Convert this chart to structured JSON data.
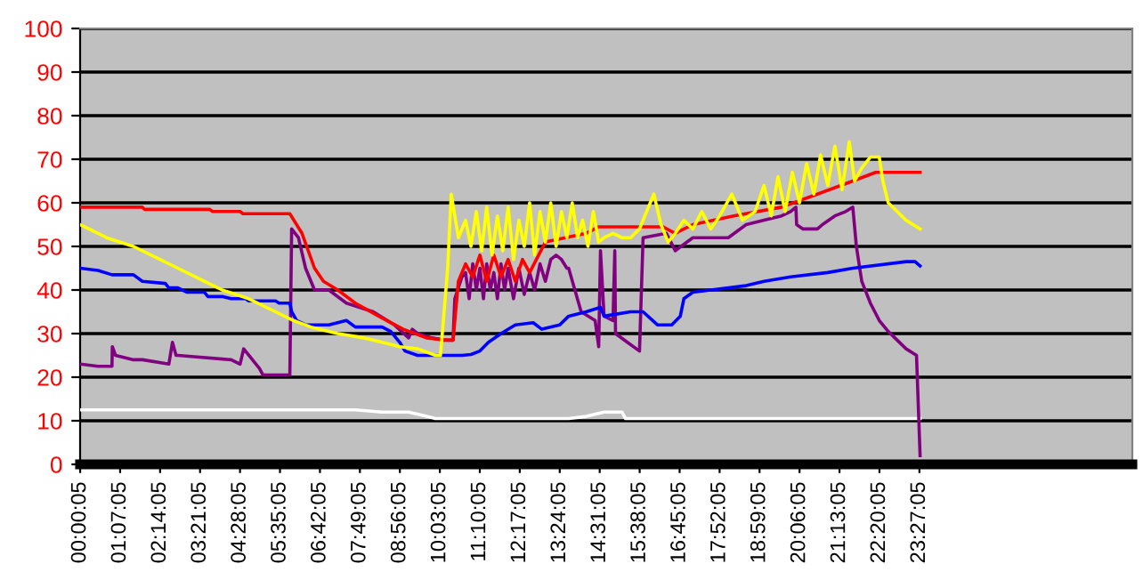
{
  "chart_data": {
    "type": "line",
    "grid": "y",
    "marker": "none",
    "line_style": "solid",
    "legend": false,
    "xlim": [
      0,
      29.4
    ],
    "ylim": [
      0,
      100
    ],
    "yticks": [
      0,
      10,
      20,
      30,
      40,
      50,
      60,
      70,
      80,
      90,
      100
    ],
    "xticks": [
      {
        "value": 0.0014,
        "label": "00:00:05"
      },
      {
        "value": 1.1181,
        "label": "01:07:05"
      },
      {
        "value": 2.2347,
        "label": "02:14:05"
      },
      {
        "value": 3.3514,
        "label": "03:21:05"
      },
      {
        "value": 4.4681,
        "label": "04:28:05"
      },
      {
        "value": 5.5847,
        "label": "05:35:05"
      },
      {
        "value": 6.7014,
        "label": "06:42:05"
      },
      {
        "value": 7.8181,
        "label": "07:49:05"
      },
      {
        "value": 8.9347,
        "label": "08:56:05"
      },
      {
        "value": 10.0514,
        "label": "10:03:05"
      },
      {
        "value": 11.1681,
        "label": "11:10:05"
      },
      {
        "value": 12.2847,
        "label": "12:17:05"
      },
      {
        "value": 13.4014,
        "label": "13:24:05"
      },
      {
        "value": 14.5181,
        "label": "14:31:05"
      },
      {
        "value": 15.6347,
        "label": "15:38:05"
      },
      {
        "value": 16.7514,
        "label": "16:45:05"
      },
      {
        "value": 17.8681,
        "label": "17:52:05"
      },
      {
        "value": 18.9847,
        "label": "18:59:05"
      },
      {
        "value": 20.1014,
        "label": "20:06:05"
      },
      {
        "value": 21.2181,
        "label": "21:13:05"
      },
      {
        "value": 22.3347,
        "label": "22:20:05"
      },
      {
        "value": 23.4514,
        "label": "23:27:05"
      }
    ],
    "series": [
      {
        "color": "#ffffff",
        "x": [
          0,
          7.69,
          8.44,
          9.18,
          9.68,
          9.93,
          13.65,
          14.14,
          14.64,
          15.14,
          15.24,
          23.47
        ],
        "values": [
          12.5,
          12.5,
          12,
          12,
          11,
          10.5,
          10.5,
          11,
          12,
          12,
          10.5,
          10.5
        ]
      },
      {
        "color": "#800080",
        "x": [
          0,
          0.5,
          0.89,
          0.9,
          0.99,
          1.49,
          1.74,
          2.48,
          2.58,
          2.68,
          2.73,
          4.22,
          4.47,
          4.57,
          5.01,
          5.11,
          5.46,
          5.86,
          5.91,
          6.1,
          6.3,
          6.55,
          6.95,
          7.44,
          8.19,
          8.78,
          9.18,
          9.28,
          9.43,
          9.83,
          10.17,
          10.42,
          10.47,
          10.67,
          10.77,
          10.87,
          10.97,
          11.07,
          11.17,
          11.27,
          11.36,
          11.46,
          11.56,
          11.66,
          11.76,
          11.86,
          11.96,
          12.11,
          12.26,
          12.41,
          12.56,
          12.7,
          12.85,
          13.0,
          13.15,
          13.3,
          13.45,
          13.6,
          13.65,
          14.0,
          14.39,
          14.49,
          14.54,
          14.64,
          14.89,
          14.94,
          14.96,
          15.29,
          15.63,
          15.73,
          16.38,
          16.63,
          17.12,
          18.11,
          18.61,
          19.11,
          19.6,
          19.85,
          20.0,
          20.02,
          20.2,
          20.6,
          20.74,
          21.09,
          21.39,
          21.59,
          21.69,
          21.84,
          22.08,
          22.33,
          22.58,
          22.83,
          23.08,
          23.37,
          23.47
        ],
        "values": [
          23,
          22.5,
          22.5,
          27,
          25,
          24,
          24,
          23,
          28,
          25,
          25,
          24,
          23,
          26.5,
          22,
          20.5,
          20.5,
          20.5,
          54,
          52,
          45,
          40,
          40,
          37,
          35,
          32,
          29,
          31,
          30,
          29,
          28.5,
          28.5,
          38,
          43,
          44,
          38,
          46,
          40,
          45,
          38,
          46,
          40,
          44,
          38,
          46,
          40,
          45,
          38,
          45,
          39,
          44,
          40,
          46,
          42,
          47,
          48,
          47,
          45,
          45,
          35,
          33,
          27,
          49,
          34,
          33,
          49,
          30,
          28,
          26,
          52,
          53,
          49,
          52,
          52,
          55,
          56,
          57,
          58,
          59,
          55,
          54,
          54,
          55,
          57,
          58,
          59,
          50,
          42,
          37,
          33,
          30.5,
          28.5,
          26.5,
          25,
          2
        ]
      },
      {
        "color": "#ff0000",
        "x": [
          0,
          1.74,
          1.8,
          3.62,
          3.7,
          4.47,
          4.55,
          5.86,
          6.2,
          6.55,
          6.8,
          7.2,
          7.69,
          8.34,
          9.03,
          9.68,
          10.27,
          10.42,
          10.57,
          10.77,
          10.97,
          11.17,
          11.36,
          11.56,
          11.76,
          11.96,
          12.16,
          12.36,
          12.56,
          13.0,
          14.14,
          14.49,
          16.28,
          16.63,
          17.12,
          18.26,
          19.6,
          20.6,
          21.59,
          22.23,
          23.47
        ],
        "values": [
          59,
          59,
          58.5,
          58.5,
          58,
          58,
          57.5,
          57.5,
          53,
          45,
          42,
          40,
          37,
          34,
          31,
          29,
          28.5,
          28.5,
          42,
          46,
          43,
          48,
          42,
          48,
          43,
          47,
          42,
          47,
          44,
          51,
          53,
          54.5,
          54.5,
          53,
          55,
          57,
          59,
          62,
          65,
          67,
          67
        ]
      },
      {
        "color": "#0000ff",
        "x": [
          0,
          0.5,
          0.89,
          1.49,
          1.74,
          2.38,
          2.48,
          2.73,
          2.98,
          3.47,
          3.57,
          3.97,
          4.22,
          4.62,
          4.71,
          5.46,
          5.56,
          5.86,
          5.91,
          6.05,
          6.3,
          6.95,
          7.44,
          7.69,
          8.44,
          8.68,
          8.93,
          9.08,
          9.43,
          10.37,
          10.67,
          10.92,
          11.17,
          11.41,
          11.76,
          12.16,
          12.66,
          12.9,
          13.4,
          13.65,
          14.14,
          14.54,
          14.64,
          15.38,
          15.73,
          16.13,
          16.53,
          16.77,
          16.87,
          17.12,
          17.62,
          18.61,
          19.11,
          19.85,
          20.89,
          21.59,
          23.08,
          23.33,
          23.47
        ],
        "values": [
          45,
          44.5,
          43.5,
          43.5,
          42,
          41.5,
          40.5,
          40.5,
          39.5,
          39.5,
          38.5,
          38.5,
          38,
          38,
          37.5,
          37.5,
          37,
          37,
          35,
          33,
          32,
          32,
          33,
          31.5,
          31.5,
          30.5,
          28,
          26,
          25,
          25,
          25,
          25.2,
          26,
          28,
          30,
          32,
          32.5,
          31,
          32,
          34,
          35,
          36,
          34,
          35,
          35,
          32,
          32,
          34,
          38,
          39.5,
          40,
          41,
          42,
          43,
          44,
          45,
          46.5,
          46.5,
          45.5
        ]
      },
      {
        "color": "#ffff00",
        "x": [
          0,
          0.25,
          0.74,
          1.49,
          1.99,
          2.73,
          3.47,
          3.97,
          4.71,
          5.46,
          5.96,
          6.45,
          7.2,
          7.94,
          8.44,
          8.93,
          9.43,
          9.93,
          10.07,
          10.27,
          10.37,
          10.57,
          10.77,
          10.92,
          11.07,
          11.22,
          11.36,
          11.51,
          11.66,
          11.81,
          11.96,
          12.11,
          12.26,
          12.41,
          12.56,
          12.7,
          12.85,
          13.0,
          13.15,
          13.3,
          13.45,
          13.6,
          13.75,
          13.9,
          14.04,
          14.19,
          14.34,
          14.49,
          14.64,
          14.89,
          15.14,
          15.38,
          15.63,
          16.03,
          16.23,
          16.43,
          16.63,
          16.87,
          17.12,
          17.37,
          17.62,
          17.87,
          18.21,
          18.51,
          18.86,
          19.11,
          19.31,
          19.5,
          19.7,
          19.9,
          20.1,
          20.3,
          20.5,
          20.69,
          20.89,
          21.09,
          21.29,
          21.49,
          21.64,
          21.84,
          22.08,
          22.33,
          22.43,
          22.58,
          22.83,
          23.08,
          23.47
        ],
        "values": [
          55,
          54,
          52,
          50,
          48,
          45,
          42,
          40,
          38,
          35,
          33,
          31.5,
          30,
          29,
          28,
          27,
          26.5,
          25,
          25,
          45,
          62,
          52,
          56,
          50,
          58,
          49,
          59,
          48,
          57,
          49,
          59,
          47,
          56,
          50,
          60,
          48,
          58,
          51,
          60,
          50,
          58,
          52,
          60,
          52,
          56,
          50,
          58,
          51,
          52,
          53,
          52,
          52,
          54,
          62,
          55,
          51,
          53,
          56,
          54,
          58,
          54,
          57,
          62,
          56,
          58,
          64,
          57,
          66,
          58,
          67,
          60,
          69,
          62,
          71,
          64,
          73,
          63,
          74,
          65,
          68,
          70.5,
          70.5,
          65,
          60,
          58,
          56,
          54
        ]
      }
    ]
  }
}
